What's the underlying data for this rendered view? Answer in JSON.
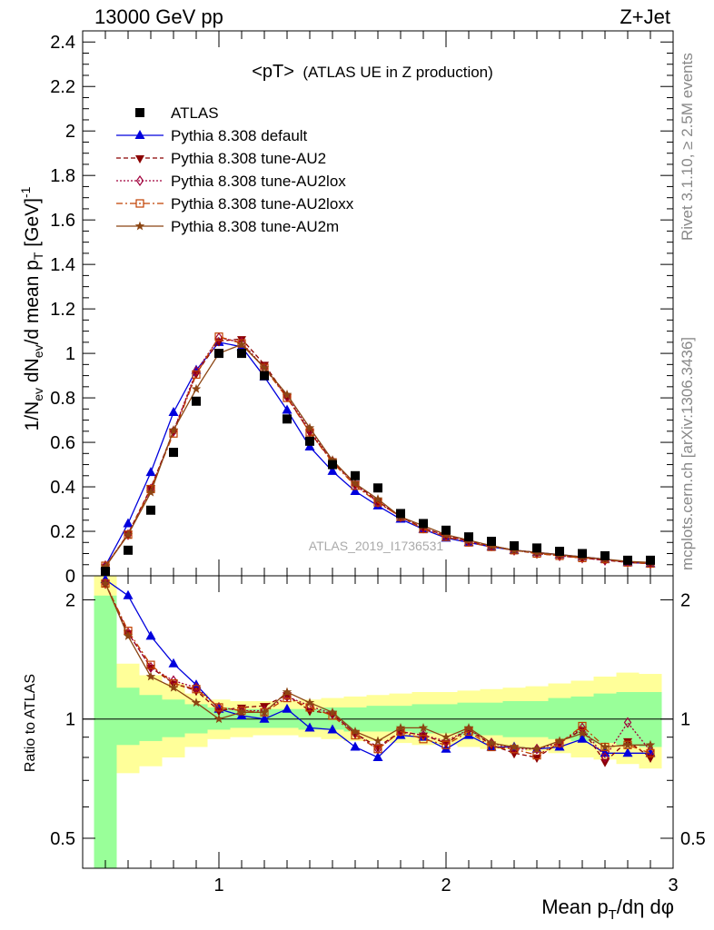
{
  "header": {
    "left": "13000 GeV pp",
    "right": "Z+Jet"
  },
  "plot_title": {
    "main": "<pT>",
    "sub": "(ATLAS UE in Z production)"
  },
  "side_labels": {
    "rivet": "Rivet 3.1.10, ≥ 2.5M events",
    "mcplots": "mcplots.cern.ch [arXiv:1306.3436]"
  },
  "watermark": "ATLAS_2019_I1736531",
  "colors": {
    "atlas": "#000000",
    "default": "#0000dd",
    "au2": "#8b0000",
    "au2lox": "#a0003c",
    "au2loxx": "#c04000",
    "au2m": "#8b4513",
    "band_inner": "#99ff99",
    "band_outer": "#ffff99"
  },
  "chart_data": [
    {
      "type": "line",
      "ylabel": "1/N_ev dN_ev/d mean p_T [GeV]^-1",
      "ylim": [
        0,
        2.45
      ],
      "yticks": [
        "0",
        "0.2",
        "0.4",
        "0.6",
        "0.8",
        "1",
        "1.2",
        "1.4",
        "1.6",
        "1.8",
        "2",
        "2.2",
        "2.4"
      ],
      "xlim": [
        0.4,
        3.0
      ],
      "legend_position": "top-left",
      "x": [
        0.5,
        0.6,
        0.7,
        0.8,
        0.9,
        1.0,
        1.1,
        1.2,
        1.3,
        1.4,
        1.5,
        1.6,
        1.7,
        1.8,
        1.9,
        2.0,
        2.1,
        2.2,
        2.3,
        2.4,
        2.5,
        2.6,
        2.7,
        2.8,
        2.9
      ],
      "series": [
        {
          "name": "ATLAS",
          "style": "data",
          "marker": "square",
          "values": [
            0.02,
            0.115,
            0.295,
            0.555,
            0.785,
            1.0,
            1.0,
            0.9,
            0.705,
            0.605,
            0.5,
            0.45,
            0.395,
            0.28,
            0.235,
            0.205,
            0.175,
            0.155,
            0.135,
            0.125,
            0.11,
            0.1,
            0.09,
            0.07,
            0.07
          ]
        },
        {
          "name": "Pythia 8.308 default",
          "style": "solid",
          "marker": "triangle-up",
          "values": [
            0.045,
            0.235,
            0.465,
            0.735,
            0.925,
            1.05,
            1.03,
            0.895,
            0.745,
            0.58,
            0.47,
            0.38,
            0.315,
            0.255,
            0.21,
            0.17,
            0.15,
            0.13,
            0.115,
            0.105,
            0.095,
            0.085,
            0.075,
            0.06,
            0.055
          ]
        },
        {
          "name": "Pythia 8.308 tune-AU2",
          "style": "dashed",
          "marker": "triangle-down",
          "values": [
            0.04,
            0.19,
            0.395,
            0.65,
            0.91,
            1.055,
            1.065,
            0.95,
            0.805,
            0.645,
            0.515,
            0.415,
            0.335,
            0.265,
            0.215,
            0.18,
            0.155,
            0.135,
            0.115,
            0.1,
            0.09,
            0.08,
            0.07,
            0.06,
            0.055
          ]
        },
        {
          "name": "Pythia 8.308 tune-AU2lox",
          "style": "dotted",
          "marker": "diamond-open",
          "values": [
            0.045,
            0.185,
            0.39,
            0.65,
            0.92,
            1.07,
            1.05,
            0.935,
            0.805,
            0.655,
            0.515,
            0.41,
            0.33,
            0.265,
            0.215,
            0.18,
            0.155,
            0.135,
            0.115,
            0.105,
            0.09,
            0.08,
            0.07,
            0.065,
            0.055
          ]
        },
        {
          "name": "Pythia 8.308 tune-AU2loxx",
          "style": "dashdot",
          "marker": "square-open",
          "values": [
            0.045,
            0.185,
            0.39,
            0.64,
            0.905,
            1.075,
            1.045,
            0.935,
            0.8,
            0.645,
            0.51,
            0.405,
            0.33,
            0.265,
            0.21,
            0.175,
            0.15,
            0.13,
            0.115,
            0.1,
            0.09,
            0.08,
            0.075,
            0.06,
            0.055
          ]
        },
        {
          "name": "Pythia 8.308 tune-AU2m",
          "style": "solid",
          "marker": "star",
          "values": [
            0.04,
            0.185,
            0.375,
            0.655,
            0.84,
            1.0,
            1.04,
            0.935,
            0.815,
            0.665,
            0.52,
            0.415,
            0.345,
            0.265,
            0.225,
            0.185,
            0.16,
            0.135,
            0.115,
            0.105,
            0.095,
            0.085,
            0.075,
            0.065,
            0.06
          ]
        }
      ]
    },
    {
      "type": "line",
      "ylabel": "Ratio to ATLAS",
      "xlabel": "Mean p_T/dη dφ",
      "yscale": "log",
      "ylim": [
        0.42,
        2.3
      ],
      "yticks": [
        "0.5",
        "1",
        "2"
      ],
      "xlim": [
        0.4,
        3.0
      ],
      "xticks": [
        "1",
        "2",
        "3"
      ],
      "x": [
        0.5,
        0.6,
        0.7,
        0.8,
        0.9,
        1.0,
        1.1,
        1.2,
        1.3,
        1.4,
        1.5,
        1.6,
        1.7,
        1.8,
        1.9,
        2.0,
        2.1,
        2.2,
        2.3,
        2.4,
        2.5,
        2.6,
        2.7,
        2.8,
        2.9
      ],
      "bands": {
        "inner": [
          [
            0.35,
            2.05
          ],
          [
            0.86,
            1.2
          ],
          [
            0.88,
            1.15
          ],
          [
            0.9,
            1.12
          ],
          [
            0.92,
            1.09
          ],
          [
            0.94,
            1.07
          ],
          [
            0.95,
            1.06
          ],
          [
            0.95,
            1.06
          ],
          [
            0.95,
            1.06
          ],
          [
            0.94,
            1.06
          ],
          [
            0.94,
            1.07
          ],
          [
            0.93,
            1.07
          ],
          [
            0.93,
            1.08
          ],
          [
            0.93,
            1.08
          ],
          [
            0.92,
            1.09
          ],
          [
            0.92,
            1.09
          ],
          [
            0.91,
            1.1
          ],
          [
            0.91,
            1.1
          ],
          [
            0.9,
            1.11
          ],
          [
            0.9,
            1.11
          ],
          [
            0.89,
            1.13
          ],
          [
            0.88,
            1.14
          ],
          [
            0.87,
            1.16
          ],
          [
            0.86,
            1.17
          ],
          [
            0.85,
            1.17
          ]
        ],
        "outer": [
          [
            0.25,
            2.3
          ],
          [
            0.73,
            1.38
          ],
          [
            0.76,
            1.29
          ],
          [
            0.8,
            1.23
          ],
          [
            0.85,
            1.16
          ],
          [
            0.89,
            1.12
          ],
          [
            0.9,
            1.11
          ],
          [
            0.91,
            1.11
          ],
          [
            0.91,
            1.11
          ],
          [
            0.9,
            1.12
          ],
          [
            0.89,
            1.13
          ],
          [
            0.88,
            1.14
          ],
          [
            0.88,
            1.15
          ],
          [
            0.87,
            1.16
          ],
          [
            0.86,
            1.17
          ],
          [
            0.86,
            1.17
          ],
          [
            0.85,
            1.18
          ],
          [
            0.84,
            1.19
          ],
          [
            0.84,
            1.2
          ],
          [
            0.83,
            1.21
          ],
          [
            0.82,
            1.23
          ],
          [
            0.8,
            1.25
          ],
          [
            0.79,
            1.28
          ],
          [
            0.77,
            1.31
          ],
          [
            0.75,
            1.3
          ]
        ]
      },
      "series": [
        {
          "name": "Pythia 8.308 default",
          "values": [
            2.25,
            2.05,
            1.62,
            1.38,
            1.22,
            1.06,
            1.02,
            1.0,
            1.06,
            0.95,
            0.94,
            0.85,
            0.8,
            0.91,
            0.9,
            0.84,
            0.91,
            0.85,
            0.85,
            0.84,
            0.85,
            0.89,
            0.82,
            0.82,
            0.82
          ]
        },
        {
          "name": "Pythia 8.308 tune-AU2",
          "values": [
            2.2,
            1.65,
            1.35,
            1.23,
            1.18,
            1.05,
            1.07,
            1.08,
            1.15,
            1.05,
            1.03,
            0.92,
            0.85,
            0.93,
            0.91,
            0.87,
            0.94,
            0.86,
            0.82,
            0.8,
            0.87,
            0.94,
            0.78,
            0.88,
            0.8
          ]
        },
        {
          "name": "Pythia 8.308 tune-AU2lox",
          "values": [
            2.2,
            1.65,
            1.35,
            1.25,
            1.2,
            1.07,
            1.05,
            1.05,
            1.14,
            1.08,
            1.03,
            0.92,
            0.84,
            0.93,
            0.91,
            0.88,
            0.94,
            0.87,
            0.84,
            0.84,
            0.87,
            0.95,
            0.8,
            0.98,
            0.83
          ]
        },
        {
          "name": "Pythia 8.308 tune-AU2loxx",
          "values": [
            2.2,
            1.67,
            1.37,
            1.23,
            1.19,
            1.07,
            1.05,
            1.04,
            1.13,
            1.07,
            1.02,
            0.91,
            0.84,
            0.93,
            0.89,
            0.86,
            0.93,
            0.85,
            0.84,
            0.81,
            0.87,
            0.96,
            0.85,
            0.86,
            0.82
          ]
        },
        {
          "name": "Pythia 8.308 tune-AU2m",
          "values": [
            2.2,
            1.62,
            1.28,
            1.2,
            1.1,
            1.0,
            1.04,
            1.04,
            1.17,
            1.1,
            1.04,
            0.93,
            0.88,
            0.95,
            0.95,
            0.9,
            0.95,
            0.87,
            0.85,
            0.84,
            0.88,
            0.92,
            0.85,
            0.86,
            0.86
          ]
        }
      ]
    }
  ]
}
